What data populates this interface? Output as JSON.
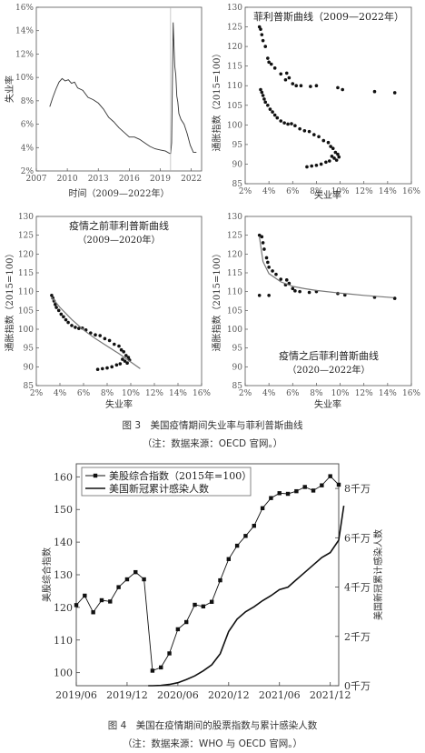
{
  "figure3": {
    "caption": "图 3　美国疫情期间失业率与菲利普斯曲线",
    "note": "（注：数据来源：OECD 官网。）",
    "panel_a": {
      "ylabel": "失业率",
      "xlabel": "时间（2009—2022年）",
      "yticks": [
        "2%",
        "4%",
        "6%",
        "8%",
        "10%",
        "12%",
        "14%",
        "16%"
      ],
      "xticks": [
        "2007",
        "2010",
        "2013",
        "2016",
        "2019",
        "2022"
      ]
    },
    "panel_b": {
      "title": "菲利普斯曲线（2009—2022年）",
      "ylabel": "通胀指数（2015=100）",
      "xlabel": "失业率",
      "yticks": [
        "85",
        "90",
        "95",
        "100",
        "105",
        "110",
        "115",
        "120",
        "125",
        "130"
      ],
      "xticks": [
        "2%",
        "4%",
        "6%",
        "8%",
        "10%",
        "12%",
        "14%",
        "16%"
      ]
    },
    "panel_c": {
      "title": "疫情之前菲利普斯曲线",
      "subtitle": "（2009—2020年）",
      "ylabel": "通胀指数（2015=100）",
      "xlabel": "失业率",
      "yticks": [
        "85",
        "90",
        "95",
        "100",
        "105",
        "110",
        "115",
        "120",
        "125",
        "130"
      ],
      "xticks": [
        "2%",
        "4%",
        "6%",
        "8%",
        "10%",
        "12%",
        "14%",
        "16%"
      ]
    },
    "panel_d": {
      "title": "疫情之后菲利普斯曲线",
      "subtitle": "（2020—2022年）",
      "ylabel": "通胀指数（2015=100）",
      "xlabel": "失业率",
      "yticks": [
        "85",
        "90",
        "95",
        "100",
        "105",
        "110",
        "115",
        "120",
        "125",
        "130"
      ],
      "xticks": [
        "2%",
        "4%",
        "6%",
        "8%",
        "10%",
        "12%",
        "14%",
        "16%"
      ]
    }
  },
  "figure4": {
    "caption": "图 4　美国在疫情期间的股票指数与累计感染人数",
    "note": "（注：数据来源：WHO 与 OECD 官网。）",
    "ylabel_left": "美股综合指数",
    "ylabel_right": "美国新冠累计感染人数",
    "legend": [
      "美股综合指数（2015年=100）",
      "美国新冠累计感染人数"
    ],
    "yticks_left": [
      "100",
      "110",
      "120",
      "130",
      "140",
      "150",
      "160"
    ],
    "yticks_right": [
      "0千万",
      "2千万",
      "4千万",
      "6千万",
      "8千万"
    ],
    "xticks": [
      "2019/06",
      "2019/12",
      "2020/06",
      "2020/12",
      "2021/06",
      "2021/12"
    ]
  },
  "chart_data": [
    {
      "type": "line",
      "panel": "a",
      "xlabel": "时间（2009—2022年）",
      "ylabel": "失业率",
      "xlim": [
        2007,
        2023
      ],
      "ylim": [
        2,
        16
      ],
      "series": [
        {
          "x": [
            2008.3,
            2008.6,
            2008.9,
            2009.2,
            2009.5,
            2009.8,
            2010.1,
            2010.4,
            2010.7,
            2011.0,
            2011.5,
            2012.0,
            2012.5,
            2013.0,
            2013.5,
            2014.0,
            2014.5,
            2015.0,
            2015.5,
            2016.0,
            2016.5,
            2017.0,
            2017.5,
            2018.0,
            2018.5,
            2019.0,
            2019.5,
            2019.9,
            2020.0,
            2020.1,
            2020.25,
            2020.3,
            2020.4,
            2020.5,
            2020.6,
            2020.7,
            2020.8,
            2021.0,
            2021.3,
            2021.6,
            2021.9,
            2022.2,
            2022.5
          ],
          "y": [
            7.5,
            8.3,
            9.0,
            9.6,
            9.9,
            9.7,
            9.8,
            9.5,
            9.6,
            9.1,
            8.9,
            8.3,
            8.1,
            7.8,
            7.3,
            6.6,
            6.2,
            5.7,
            5.3,
            4.9,
            4.9,
            4.7,
            4.4,
            4.1,
            3.9,
            3.8,
            3.7,
            3.5,
            3.5,
            4.4,
            14.7,
            13.3,
            11.0,
            10.2,
            8.4,
            7.9,
            6.9,
            6.4,
            6.0,
            5.2,
            4.2,
            3.6,
            3.6
          ]
        }
      ]
    },
    {
      "type": "scatter",
      "panel": "b",
      "title": "菲利普斯曲线（2009—2022年）",
      "xlabel": "失业率",
      "ylabel": "通胀指数（2015=100）",
      "xlim": [
        2,
        16
      ],
      "ylim": [
        85,
        130
      ],
      "points": [
        [
          3.2,
          125
        ],
        [
          3.3,
          124.4
        ],
        [
          3.4,
          123
        ],
        [
          3.5,
          121.5
        ],
        [
          3.7,
          120
        ],
        [
          3.9,
          117
        ],
        [
          4.0,
          116
        ],
        [
          4.2,
          115.5
        ],
        [
          4.5,
          114.5
        ],
        [
          5.0,
          113
        ],
        [
          5.4,
          111.5
        ],
        [
          5.5,
          113.2
        ],
        [
          5.7,
          112
        ],
        [
          6.0,
          110.5
        ],
        [
          6.3,
          110
        ],
        [
          6.7,
          110
        ],
        [
          7.5,
          109.8
        ],
        [
          8.0,
          110
        ],
        [
          9.8,
          109.5
        ],
        [
          10.2,
          109
        ],
        [
          12.9,
          108.5
        ],
        [
          14.6,
          108.2
        ],
        [
          3.3,
          109
        ],
        [
          3.4,
          108.3
        ],
        [
          3.5,
          107.5
        ],
        [
          3.6,
          106.6
        ],
        [
          3.7,
          105.8
        ],
        [
          3.9,
          105
        ],
        [
          4.1,
          104
        ],
        [
          4.3,
          103.3
        ],
        [
          4.5,
          102.5
        ],
        [
          4.7,
          101.8
        ],
        [
          5.0,
          101
        ],
        [
          5.3,
          100.5
        ],
        [
          5.6,
          100.2
        ],
        [
          5.9,
          100.3
        ],
        [
          6.2,
          99.8
        ],
        [
          6.6,
          99
        ],
        [
          7.0,
          98.5
        ],
        [
          7.4,
          98.3
        ],
        [
          7.8,
          97.5
        ],
        [
          8.2,
          97
        ],
        [
          8.6,
          96
        ],
        [
          9.0,
          95.5
        ],
        [
          9.2,
          94.5
        ],
        [
          9.4,
          94
        ],
        [
          9.6,
          93
        ],
        [
          9.8,
          92.5
        ],
        [
          9.9,
          91.8
        ],
        [
          9.7,
          91
        ],
        [
          9.5,
          91.5
        ],
        [
          9.3,
          92
        ],
        [
          9.1,
          90.8
        ],
        [
          8.8,
          90.5
        ],
        [
          8.4,
          90
        ],
        [
          8.0,
          89.7
        ],
        [
          7.6,
          89.5
        ],
        [
          7.2,
          89.3
        ]
      ]
    },
    {
      "type": "scatter",
      "panel": "c",
      "title": "疫情之前菲利普斯曲线",
      "xlabel": "失业率",
      "ylabel": "通胀指数（2015=100）",
      "xlim": [
        2,
        16
      ],
      "ylim": [
        85,
        130
      ],
      "points": [
        [
          3.3,
          109
        ],
        [
          3.4,
          108.3
        ],
        [
          3.5,
          107.5
        ],
        [
          3.6,
          106.6
        ],
        [
          3.7,
          105.8
        ],
        [
          3.9,
          105
        ],
        [
          4.1,
          104
        ],
        [
          4.3,
          103.3
        ],
        [
          4.5,
          102.5
        ],
        [
          4.7,
          101.8
        ],
        [
          5.0,
          101
        ],
        [
          5.3,
          100.5
        ],
        [
          5.6,
          100.2
        ],
        [
          5.9,
          100.3
        ],
        [
          6.2,
          99.8
        ],
        [
          6.6,
          99
        ],
        [
          7.0,
          98.5
        ],
        [
          7.4,
          98.3
        ],
        [
          7.8,
          97.5
        ],
        [
          8.2,
          97
        ],
        [
          8.6,
          96
        ],
        [
          9.0,
          95.5
        ],
        [
          9.2,
          94.5
        ],
        [
          9.4,
          94
        ],
        [
          9.6,
          93
        ],
        [
          9.8,
          92.5
        ],
        [
          9.9,
          91.8
        ],
        [
          9.7,
          91
        ],
        [
          9.5,
          91.5
        ],
        [
          9.3,
          92
        ],
        [
          9.1,
          90.8
        ],
        [
          8.8,
          90.5
        ],
        [
          8.4,
          90
        ],
        [
          8.0,
          89.7
        ],
        [
          7.6,
          89.5
        ],
        [
          7.2,
          89.3
        ]
      ],
      "fit": {
        "x": [
          3.3,
          4,
          5,
          6,
          7,
          8,
          9,
          10,
          10.8
        ],
        "y": [
          108.5,
          105.8,
          102.6,
          99.8,
          97.5,
          95.5,
          93.5,
          91.3,
          89.5
        ]
      }
    },
    {
      "type": "scatter",
      "panel": "d",
      "title": "疫情之后菲利普斯曲线",
      "subtitle": "（2020—2022年）",
      "xlabel": "失业率",
      "ylabel": "通胀指数（2015=100）",
      "xlim": [
        2,
        16
      ],
      "ylim": [
        85,
        130
      ],
      "points": [
        [
          3.2,
          125
        ],
        [
          3.4,
          124.6
        ],
        [
          3.5,
          123
        ],
        [
          3.6,
          121.3
        ],
        [
          3.8,
          119
        ],
        [
          3.9,
          117.8
        ],
        [
          4.0,
          116.5
        ],
        [
          4.3,
          115.5
        ],
        [
          4.6,
          114.6
        ],
        [
          5.0,
          113.3
        ],
        [
          5.4,
          111.8
        ],
        [
          5.5,
          113.1
        ],
        [
          5.7,
          112.2
        ],
        [
          6.0,
          110.8
        ],
        [
          6.2,
          110.2
        ],
        [
          6.6,
          110
        ],
        [
          7.4,
          109.8
        ],
        [
          8.0,
          110
        ],
        [
          9.8,
          109.5
        ],
        [
          10.4,
          109.1
        ],
        [
          12.9,
          108.5
        ],
        [
          14.6,
          108.2
        ],
        [
          3.2,
          109
        ],
        [
          4.0,
          109
        ]
      ],
      "fit": {
        "x": [
          3.2,
          3.5,
          4,
          5,
          6,
          7,
          8,
          10,
          12,
          14.5
        ],
        "y": [
          124.5,
          118,
          114.8,
          112.6,
          111.4,
          110.8,
          110.3,
          109.6,
          109,
          108.4
        ]
      }
    },
    {
      "type": "line",
      "panel": "figure4",
      "ylabel": "美股综合指数",
      "y2label": "美国新冠累计感染人数",
      "xticks": [
        "2019/06",
        "2019/12",
        "2020/06",
        "2020/12",
        "2021/06",
        "2021/12"
      ],
      "ylim": [
        96,
        164
      ],
      "y2lim": [
        0,
        9
      ],
      "series": [
        {
          "name": "美股综合指数（2015年=100）",
          "x": [
            0,
            1,
            2,
            3,
            4,
            5,
            6,
            7,
            8,
            9,
            10,
            11,
            12,
            13,
            14,
            15,
            16,
            17,
            18,
            19,
            20,
            21,
            22,
            23,
            24,
            25,
            26,
            27,
            28,
            29,
            30,
            31
          ],
          "values": [
            120.7,
            123.6,
            118.5,
            122.2,
            121.8,
            126.2,
            128.6,
            130.8,
            128.6,
            100.6,
            101.6,
            105.9,
            113.3,
            115.5,
            120.8,
            120.3,
            121.7,
            128.3,
            134.8,
            138.9,
            141.9,
            145.0,
            150.4,
            153.5,
            155.0,
            154.8,
            155.6,
            156.9,
            155.8,
            157.4,
            160.2,
            157.6
          ]
        },
        {
          "name": "美国新冠累计感染人数",
          "x": [
            8.5,
            9,
            10,
            11,
            12,
            13,
            14,
            15,
            16,
            17,
            18,
            19,
            20,
            21,
            22,
            23,
            24,
            25,
            26,
            27,
            28,
            29,
            30,
            31,
            31.6
          ],
          "values": [
            0,
            0,
            0.01,
            0.05,
            0.12,
            0.25,
            0.4,
            0.6,
            0.85,
            1.3,
            2.2,
            2.7,
            3.0,
            3.2,
            3.45,
            3.65,
            3.9,
            4.0,
            4.3,
            4.6,
            4.9,
            5.2,
            5.4,
            5.9,
            7.3
          ]
        }
      ]
    }
  ]
}
